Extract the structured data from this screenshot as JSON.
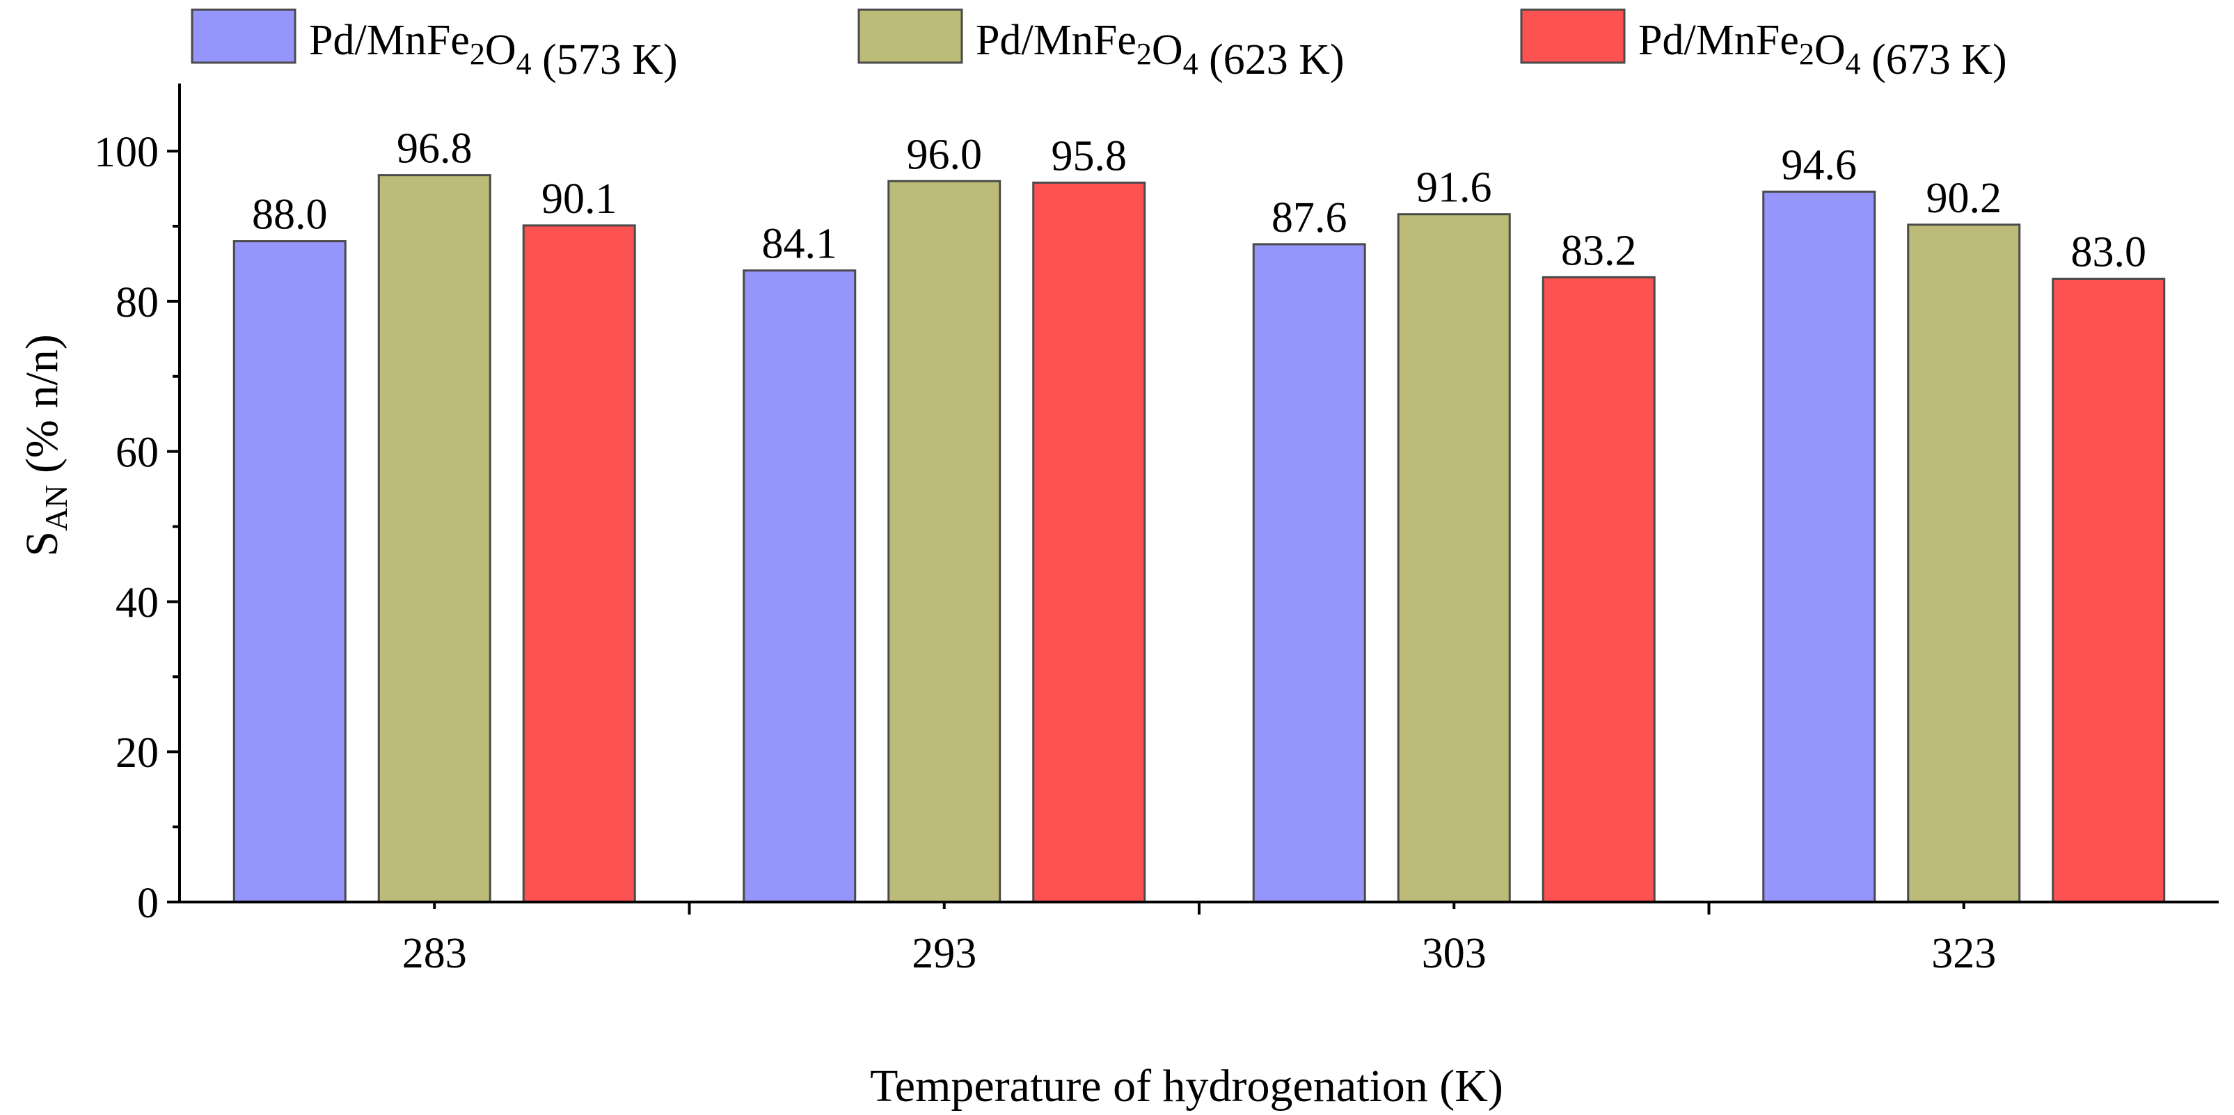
{
  "chart_data": {
    "type": "bar",
    "title": "",
    "xlabel": "Temperature of hydrogenation (K)",
    "ylabel": {
      "main": "S",
      "sub": "AN",
      "rest": " (% n/n)"
    },
    "categories": [
      "283",
      "293",
      "303",
      "323"
    ],
    "ylim": [
      0,
      109
    ],
    "yticks": [
      0,
      20,
      40,
      60,
      80,
      100
    ],
    "ytick_labels": [
      "0",
      "20",
      "40",
      "60",
      "80",
      "100"
    ],
    "grid": false,
    "legend_position": "top",
    "series": [
      {
        "name": "Pd/MnFe2O4 (573 K)",
        "label_parts": {
          "pre": "Pd/MnFe",
          "sub1": "2",
          "mid": "O",
          "sub2": "4",
          "post": " (573 K)"
        },
        "color": "#9595fc",
        "values": [
          88.0,
          84.1,
          87.6,
          94.6
        ],
        "value_labels": [
          "88.0",
          "84.1",
          "87.6",
          "94.6"
        ]
      },
      {
        "name": "Pd/MnFe2O4 (623 K)",
        "label_parts": {
          "pre": "Pd/MnFe",
          "sub1": "2",
          "mid": "O",
          "sub2": "4",
          "post": " (623 K)"
        },
        "color": "#bdbb78",
        "values": [
          96.8,
          96.0,
          91.6,
          90.2
        ],
        "value_labels": [
          "96.8",
          "96.0",
          "91.6",
          "90.2"
        ]
      },
      {
        "name": "Pd/MnFe2O4 (673 K)",
        "label_parts": {
          "pre": "Pd/MnFe",
          "sub1": "2",
          "mid": "O",
          "sub2": "4",
          "post": " (673 K)"
        },
        "color": "#fd5252",
        "values": [
          90.1,
          95.8,
          83.2,
          83.0
        ],
        "value_labels": [
          "90.1",
          "95.8",
          "83.2",
          "83.0"
        ]
      }
    ]
  }
}
